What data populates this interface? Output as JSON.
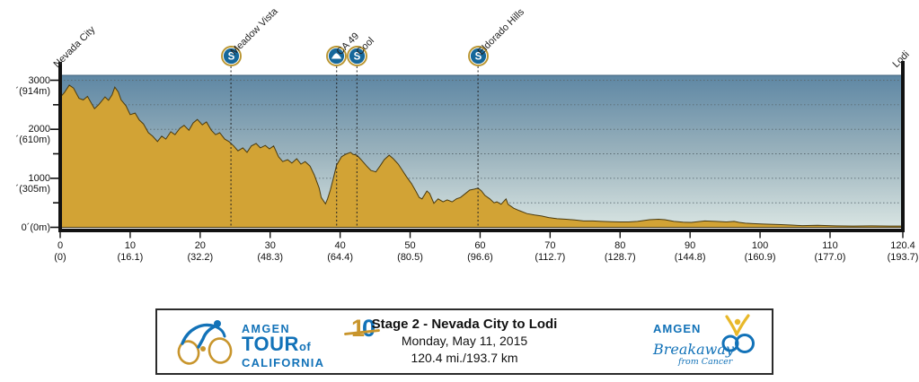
{
  "banner": {
    "title": "Stage 2 - Nevada City to Lodi",
    "date": "Monday, May 11, 2015",
    "distance": "120.4 mi./193.7 km"
  },
  "logos": {
    "atoc": {
      "amgen": "AMGEN",
      "tour": "TOUR",
      "of": "of",
      "california": "CALIFORNIA",
      "ten_digits": [
        "1",
        "0"
      ]
    },
    "breakaway": {
      "amgen": "AMGEN",
      "breakaway": "Breakaway",
      "from_cancer": "from Cancer"
    }
  },
  "chart_data": {
    "type": "area",
    "title": "Stage 2 - Nevada City to Lodi",
    "xlabel": "",
    "ylabel": "",
    "xlim": [
      0,
      120.4
    ],
    "ylim": [
      0,
      3100
    ],
    "grid": "horizontal-dotted",
    "sprint_icon_letter": "S",
    "colors": {
      "terrain": "#D2A335",
      "terrain_outline": "#4A3A0E",
      "sky_top": "#5E87A4",
      "sky_mid": "#9BB3BD",
      "sky_bottom": "#D8E4E2",
      "icon_blue": "#16689B",
      "icon_ring": "#B99530",
      "logo_blue": "#1272B8",
      "logo_gold": "#C8952C",
      "axis": "#111111"
    },
    "y_ticks": [
      {
        "ft": 3000,
        "label": "3000´(914m)"
      },
      {
        "ft": 2500
      },
      {
        "ft": 2000,
        "label": "2000´(610m)"
      },
      {
        "ft": 1500
      },
      {
        "ft": 1000,
        "label": "1000´(305m)"
      },
      {
        "ft": 500
      },
      {
        "ft": 0,
        "label": "0´(0m)"
      }
    ],
    "x_ticks": [
      {
        "mile": 0,
        "mi": "0",
        "km": "(0)"
      },
      {
        "mile": 10,
        "mi": "10",
        "km": "(16.1)"
      },
      {
        "mile": 20,
        "mi": "20",
        "km": "(32.2)"
      },
      {
        "mile": 30,
        "mi": "30",
        "km": "(48.3)"
      },
      {
        "mile": 40,
        "mi": "40",
        "km": "(64.4)"
      },
      {
        "mile": 50,
        "mi": "50",
        "km": "(80.5)"
      },
      {
        "mile": 60,
        "mi": "60",
        "km": "(96.6)"
      },
      {
        "mile": 70,
        "mi": "70",
        "km": "(112.7)"
      },
      {
        "mile": 80,
        "mi": "80",
        "km": "(128.7)"
      },
      {
        "mile": 90,
        "mi": "90",
        "km": "(144.8)"
      },
      {
        "mile": 100,
        "mi": "100",
        "km": "(160.9)"
      },
      {
        "mile": 110,
        "mi": "110",
        "km": "(177.0)"
      },
      {
        "mile": 120.4,
        "mi": "120.4",
        "km": "(193.7)"
      }
    ],
    "waypoints": [
      {
        "name": "Nevada City",
        "mile": 0,
        "type": "start"
      },
      {
        "name": "Meadow Vista",
        "mile": 24.4,
        "type": "sprint"
      },
      {
        "name": "CA 49",
        "mile": 39.5,
        "type": "kom"
      },
      {
        "name": "Cool",
        "mile": 42.4,
        "type": "sprint"
      },
      {
        "name": "Eldorado Hills",
        "mile": 59.7,
        "type": "sprint"
      },
      {
        "name": "Lodi",
        "mile": 120.4,
        "type": "finish"
      }
    ],
    "profile": [
      [
        0,
        2650
      ],
      [
        0.6,
        2750
      ],
      [
        1.3,
        2900
      ],
      [
        1.9,
        2840
      ],
      [
        2.7,
        2630
      ],
      [
        3.3,
        2600
      ],
      [
        3.9,
        2670
      ],
      [
        4.9,
        2420
      ],
      [
        5.5,
        2500
      ],
      [
        6.4,
        2660
      ],
      [
        6.9,
        2590
      ],
      [
        7.4,
        2700
      ],
      [
        7.8,
        2860
      ],
      [
        8.3,
        2760
      ],
      [
        8.7,
        2600
      ],
      [
        9.4,
        2480
      ],
      [
        10,
        2300
      ],
      [
        10.7,
        2330
      ],
      [
        11.3,
        2190
      ],
      [
        11.9,
        2110
      ],
      [
        12.6,
        1930
      ],
      [
        13.2,
        1860
      ],
      [
        13.9,
        1750
      ],
      [
        14.5,
        1860
      ],
      [
        15.1,
        1800
      ],
      [
        15.8,
        1950
      ],
      [
        16.4,
        1890
      ],
      [
        17.1,
        2020
      ],
      [
        17.7,
        2080
      ],
      [
        18.4,
        1980
      ],
      [
        19,
        2130
      ],
      [
        19.6,
        2200
      ],
      [
        20.3,
        2090
      ],
      [
        20.9,
        2150
      ],
      [
        21.6,
        1980
      ],
      [
        22.2,
        1890
      ],
      [
        22.8,
        1930
      ],
      [
        23.5,
        1800
      ],
      [
        24.1,
        1750
      ],
      [
        24.8,
        1660
      ],
      [
        25.4,
        1560
      ],
      [
        26.1,
        1620
      ],
      [
        26.7,
        1530
      ],
      [
        27.3,
        1660
      ],
      [
        28,
        1710
      ],
      [
        28.6,
        1620
      ],
      [
        29.3,
        1670
      ],
      [
        29.9,
        1600
      ],
      [
        30.5,
        1660
      ],
      [
        31.2,
        1440
      ],
      [
        31.8,
        1340
      ],
      [
        32.5,
        1380
      ],
      [
        33.1,
        1310
      ],
      [
        33.8,
        1400
      ],
      [
        34.4,
        1290
      ],
      [
        35,
        1340
      ],
      [
        35.7,
        1250
      ],
      [
        36.3,
        1070
      ],
      [
        37,
        800
      ],
      [
        37.3,
        610
      ],
      [
        37.9,
        480
      ],
      [
        38.2,
        580
      ],
      [
        38.6,
        760
      ],
      [
        39,
        980
      ],
      [
        39.5,
        1270
      ],
      [
        40.2,
        1440
      ],
      [
        40.8,
        1490
      ],
      [
        41.5,
        1530
      ],
      [
        41.8,
        1490
      ],
      [
        42.4,
        1470
      ],
      [
        43,
        1380
      ],
      [
        43.8,
        1250
      ],
      [
        44.4,
        1160
      ],
      [
        45.1,
        1130
      ],
      [
        45.7,
        1250
      ],
      [
        46.3,
        1380
      ],
      [
        47,
        1470
      ],
      [
        47.6,
        1400
      ],
      [
        48.3,
        1290
      ],
      [
        48.9,
        1160
      ],
      [
        49.5,
        1030
      ],
      [
        50.2,
        890
      ],
      [
        50.8,
        740
      ],
      [
        51.3,
        610
      ],
      [
        51.7,
        580
      ],
      [
        52.4,
        740
      ],
      [
        52.8,
        690
      ],
      [
        53.4,
        490
      ],
      [
        54,
        580
      ],
      [
        54.7,
        520
      ],
      [
        55.3,
        560
      ],
      [
        56,
        520
      ],
      [
        56.6,
        580
      ],
      [
        57.2,
        610
      ],
      [
        57.9,
        690
      ],
      [
        58.5,
        760
      ],
      [
        59.2,
        780
      ],
      [
        59.7,
        800
      ],
      [
        60.2,
        740
      ],
      [
        60.7,
        650
      ],
      [
        61.4,
        580
      ],
      [
        62,
        500
      ],
      [
        62.4,
        520
      ],
      [
        63,
        470
      ],
      [
        63.7,
        580
      ],
      [
        64,
        470
      ],
      [
        64.8,
        390
      ],
      [
        65.6,
        340
      ],
      [
        66.7,
        280
      ],
      [
        67.8,
        250
      ],
      [
        68.8,
        230
      ],
      [
        69.8,
        200
      ],
      [
        71,
        175
      ],
      [
        72.3,
        165
      ],
      [
        73.5,
        150
      ],
      [
        74.8,
        130
      ],
      [
        76.1,
        130
      ],
      [
        77.4,
        120
      ],
      [
        78.7,
        115
      ],
      [
        80,
        110
      ],
      [
        81.2,
        110
      ],
      [
        82.5,
        120
      ],
      [
        84.2,
        155
      ],
      [
        85.5,
        165
      ],
      [
        86.4,
        155
      ],
      [
        87.7,
        120
      ],
      [
        89,
        105
      ],
      [
        90.2,
        100
      ],
      [
        92.1,
        130
      ],
      [
        93.7,
        120
      ],
      [
        95.2,
        110
      ],
      [
        96.3,
        120
      ],
      [
        97,
        100
      ],
      [
        97.9,
        85
      ],
      [
        99,
        75
      ],
      [
        100.5,
        65
      ],
      [
        103,
        55
      ],
      [
        104.5,
        45
      ],
      [
        106,
        35
      ],
      [
        108.2,
        40
      ],
      [
        110.8,
        30
      ],
      [
        113.3,
        25
      ],
      [
        115.9,
        30
      ],
      [
        118.5,
        25
      ],
      [
        120.4,
        25
      ]
    ]
  }
}
